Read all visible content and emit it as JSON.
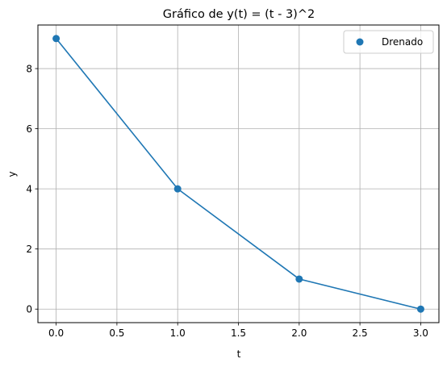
{
  "chart_data": {
    "type": "line",
    "title": "Gráfico de y(t) = (t - 3)^2",
    "xlabel": "t",
    "ylabel": "y",
    "xlim": [
      -0.15,
      3.15
    ],
    "ylim": [
      -0.45,
      9.45
    ],
    "xticks": [
      0.0,
      0.5,
      1.0,
      1.5,
      2.0,
      2.5,
      3.0
    ],
    "xtick_labels": [
      "0.0",
      "0.5",
      "1.0",
      "1.5",
      "2.0",
      "2.5",
      "3.0"
    ],
    "yticks": [
      0,
      2,
      4,
      6,
      8
    ],
    "ytick_labels": [
      "0",
      "2",
      "4",
      "6",
      "8"
    ],
    "grid": true,
    "legend_position": "top-right",
    "series": [
      {
        "name": "Drenado",
        "color": "#1f77b4",
        "x": [
          0,
          1,
          2,
          3
        ],
        "y": [
          9,
          4,
          1,
          0
        ],
        "markers": true
      }
    ]
  }
}
